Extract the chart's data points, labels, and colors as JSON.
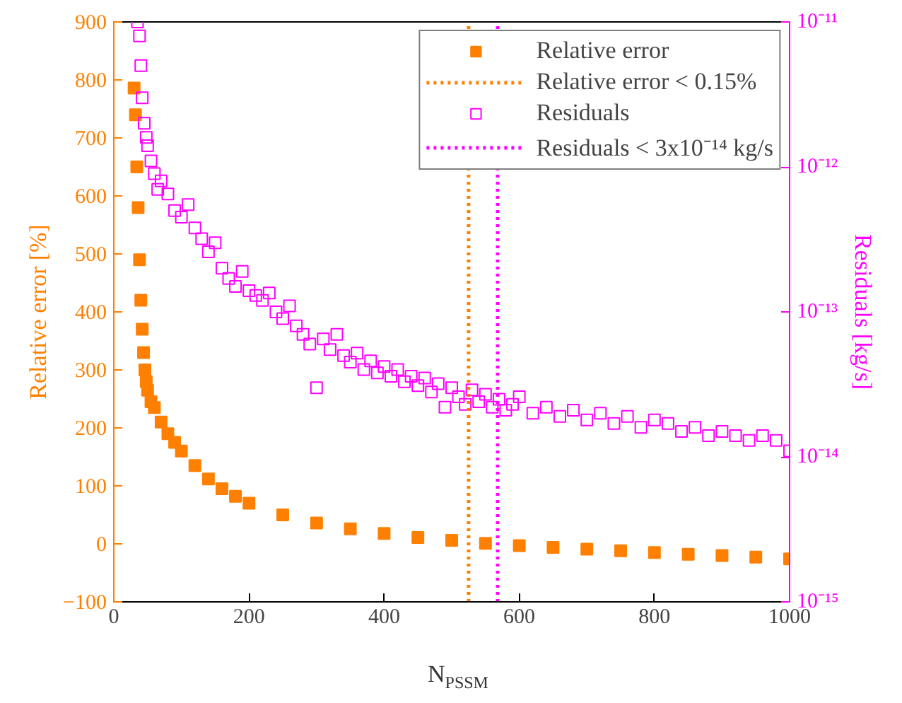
{
  "chart_data": {
    "type": "scatter",
    "xlabel": "N$_{PSSM}$",
    "ylabel": "Relative error [%]",
    "y2label": "Residuals [kg/s]",
    "xlim": [
      0,
      1000
    ],
    "xticks": [
      0,
      200,
      400,
      600,
      800,
      1000
    ],
    "ylim": [
      -100,
      900
    ],
    "yticks": [
      -100,
      0,
      100,
      200,
      300,
      400,
      500,
      600,
      700,
      800,
      900
    ],
    "y2lim": [
      1e-15,
      1e-11
    ],
    "y2ticks": [
      {
        "value": 1e-15,
        "label": "10⁻¹⁵"
      },
      {
        "value": 1e-14,
        "label": "10⁻¹⁴"
      },
      {
        "value": 1e-13,
        "label": "10⁻¹³"
      },
      {
        "value": 1e-12,
        "label": "10⁻¹²"
      },
      {
        "value": 1e-11,
        "label": "10⁻¹¹"
      }
    ],
    "log": "y2",
    "grid": false,
    "legend": "top right",
    "series": [
      {
        "name": "Relative error",
        "color": "#ff8000",
        "marker": "square",
        "x": [
          30,
          32,
          34,
          36,
          38,
          40,
          42,
          44,
          46,
          48,
          50,
          55,
          60,
          70,
          80,
          90,
          100,
          120,
          140,
          160,
          180,
          200,
          250,
          300,
          350,
          400,
          450,
          500,
          550,
          600,
          650,
          700,
          750,
          800,
          850,
          900,
          950,
          1000
        ],
        "values": [
          786,
          740,
          650,
          580,
          490,
          420,
          370,
          330,
          300,
          280,
          265,
          245,
          235,
          210,
          190,
          175,
          160,
          135,
          112,
          95,
          82,
          70,
          50,
          36,
          26,
          18,
          11,
          6,
          1,
          -3,
          -6,
          -9,
          -12,
          -15,
          -18,
          -20,
          -23,
          -26
        ]
      },
      {
        "name": "Residuals",
        "color": "#ff00ff",
        "marker": "square_open",
        "axis": "y2",
        "x": [
          35,
          38,
          40,
          42,
          45,
          48,
          50,
          55,
          60,
          65,
          70,
          80,
          90,
          100,
          110,
          120,
          130,
          140,
          150,
          160,
          170,
          180,
          190,
          200,
          210,
          220,
          230,
          240,
          250,
          260,
          270,
          280,
          290,
          300,
          310,
          320,
          330,
          340,
          350,
          360,
          370,
          380,
          390,
          400,
          410,
          420,
          430,
          440,
          450,
          460,
          470,
          480,
          490,
          500,
          510,
          520,
          530,
          540,
          550,
          560,
          570,
          580,
          590,
          600,
          620,
          640,
          660,
          680,
          700,
          720,
          740,
          760,
          780,
          800,
          820,
          840,
          860,
          880,
          900,
          920,
          940,
          960,
          980,
          1000
        ],
        "values": [
          1e-11,
          8e-12,
          5e-12,
          3e-12,
          2e-12,
          1.6e-12,
          1.4e-12,
          1.1e-12,
          9e-13,
          7e-13,
          8e-13,
          6.5e-13,
          5e-13,
          4.5e-13,
          5.5e-13,
          3.8e-13,
          3.2e-13,
          2.6e-13,
          3e-13,
          2e-13,
          1.7e-13,
          1.5e-13,
          1.9e-13,
          1.4e-13,
          1.3e-13,
          1.2e-13,
          1.35e-13,
          1e-13,
          9e-14,
          1.1e-13,
          8e-14,
          7e-14,
          6e-14,
          3e-14,
          6.5e-14,
          5.5e-14,
          7e-14,
          5e-14,
          4.5e-14,
          5.2e-14,
          4e-14,
          4.6e-14,
          3.8e-14,
          4.2e-14,
          3.6e-14,
          4e-14,
          3.3e-14,
          3.6e-14,
          3.1e-14,
          3.5e-14,
          2.8e-14,
          3.2e-14,
          2.2e-14,
          3e-14,
          2.6e-14,
          2.3e-14,
          2.9e-14,
          2.4e-14,
          2.7e-14,
          2.2e-14,
          2.5e-14,
          2.1e-14,
          2.3e-14,
          2.6e-14,
          2e-14,
          2.2e-14,
          1.9e-14,
          2.1e-14,
          1.8e-14,
          2e-14,
          1.7e-14,
          1.9e-14,
          1.6e-14,
          1.8e-14,
          1.7e-14,
          1.5e-14,
          1.6e-14,
          1.4e-14,
          1.5e-14,
          1.4e-14,
          1.3e-14,
          1.4e-14,
          1.3e-14,
          1.1e-14
        ]
      }
    ],
    "ref_lines": [
      {
        "axis": "x",
        "value": 525,
        "label": "Relative error < 0.15%",
        "color": "#ff8000",
        "line_style": "dotted"
      },
      {
        "axis": "x",
        "value": 568,
        "label": "Residuals < 3x10⁻¹⁴ kg/s",
        "color": "#ff00ff",
        "line_style": "dotted"
      }
    ]
  }
}
